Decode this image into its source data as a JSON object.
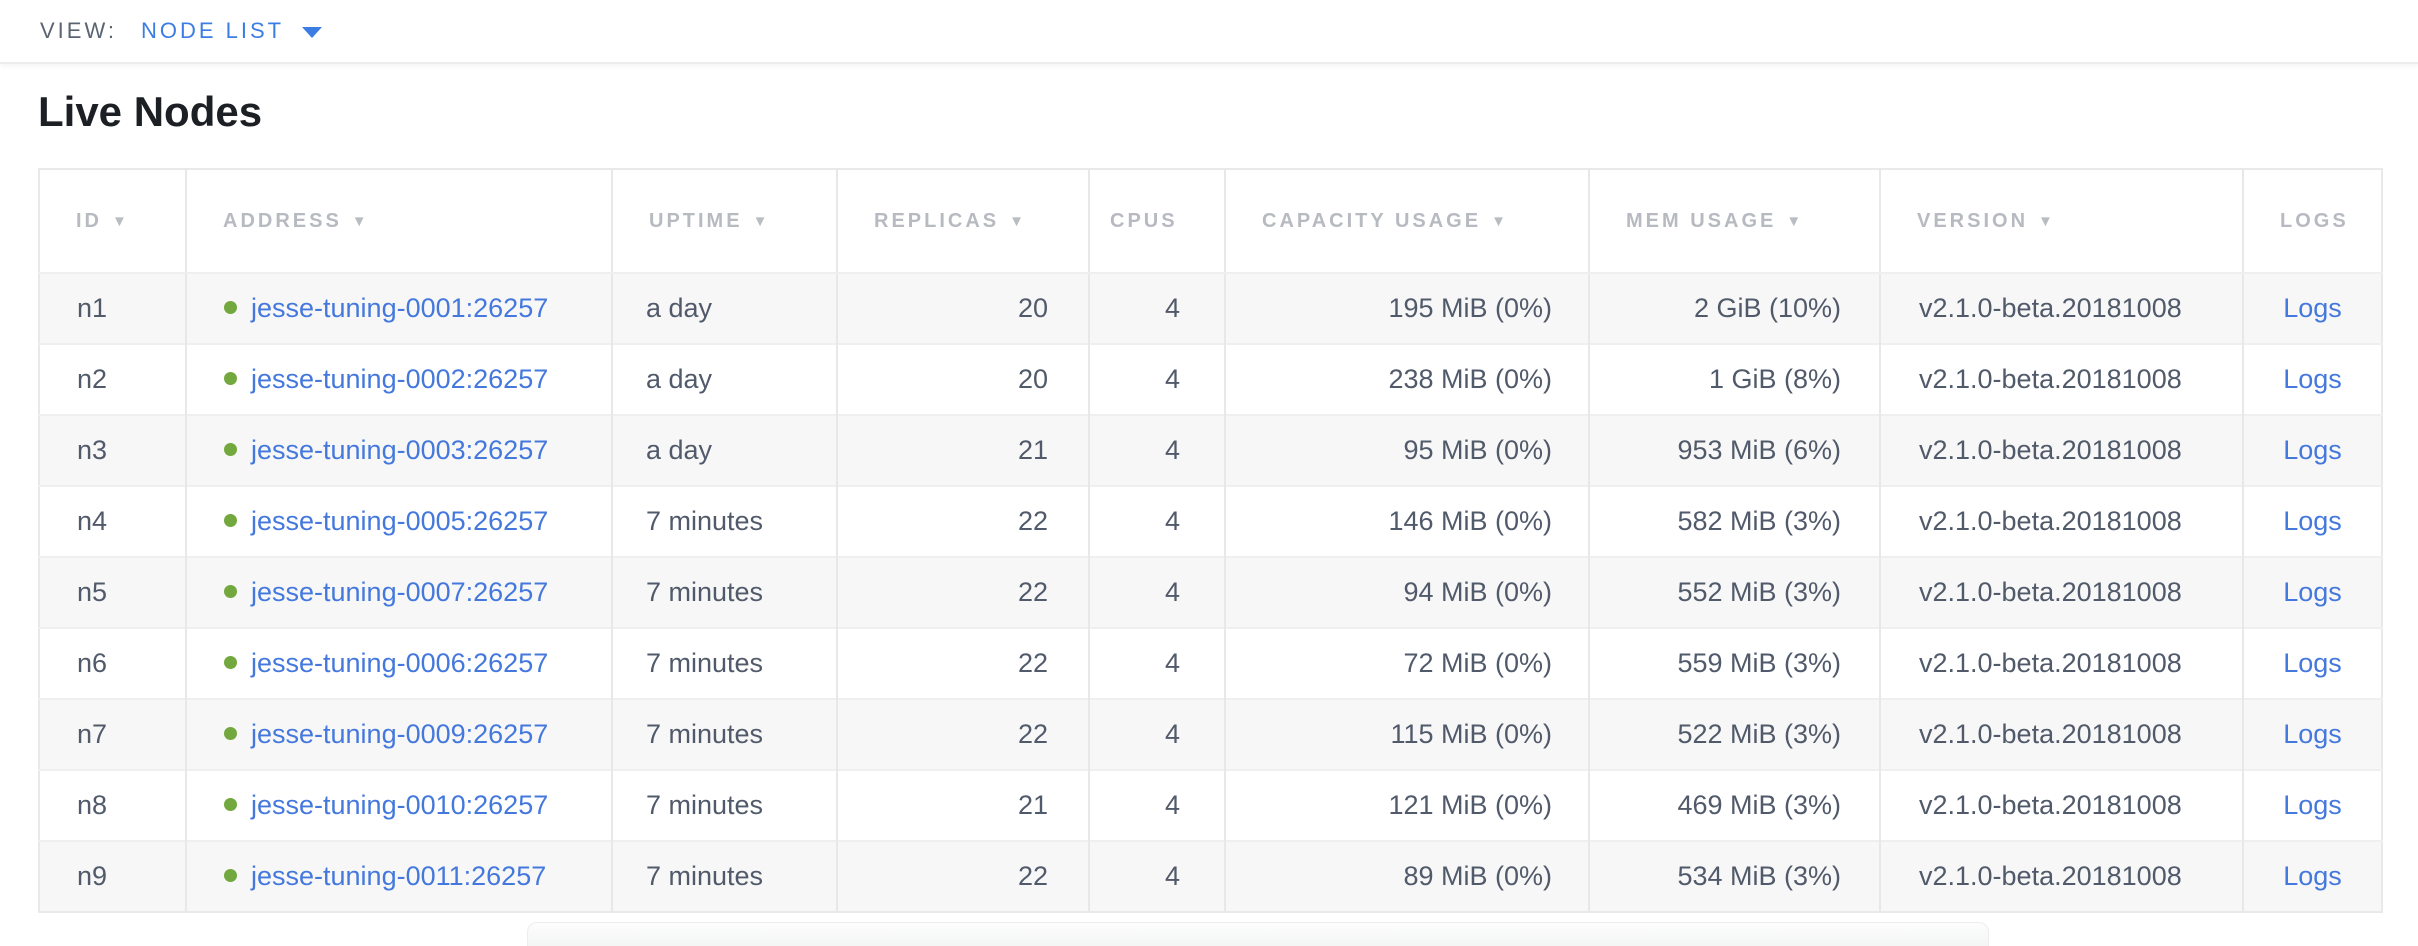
{
  "view_bar": {
    "label": "VIEW:",
    "selected_view": "NODE LIST"
  },
  "page": {
    "title": "Live Nodes"
  },
  "icons": {
    "sort_arrow": "▼",
    "dropdown_arrow": "chevron-down",
    "status_dot": "live-green-dot"
  },
  "colors": {
    "accent_blue": "#4478dd",
    "view_selector_blue": "#3b7de2",
    "live_dot_green": "#72a83d",
    "cell_text": "#515a6a",
    "header_text": "#b7bac0",
    "stripe_row": "#f7f7f7"
  },
  "table": {
    "columns": [
      {
        "key": "id",
        "label": "ID",
        "sortable": true
      },
      {
        "key": "address",
        "label": "ADDRESS",
        "sortable": true
      },
      {
        "key": "uptime",
        "label": "UPTIME",
        "sortable": true
      },
      {
        "key": "replicas",
        "label": "REPLICAS",
        "sortable": true
      },
      {
        "key": "cpus",
        "label": "CPUS",
        "sortable": false
      },
      {
        "key": "capacity",
        "label": "CAPACITY USAGE",
        "sortable": true
      },
      {
        "key": "mem",
        "label": "MEM USAGE",
        "sortable": true
      },
      {
        "key": "version",
        "label": "VERSION",
        "sortable": true
      },
      {
        "key": "logs",
        "label": "LOGS",
        "sortable": false
      }
    ],
    "rows": [
      {
        "id": "n1",
        "address": "jesse-tuning-0001:26257",
        "uptime": "a day",
        "replicas": "20",
        "cpus": "4",
        "capacity": "195 MiB (0%)",
        "mem": "2 GiB (10%)",
        "version": "v2.1.0-beta.20181008",
        "logs": "Logs"
      },
      {
        "id": "n2",
        "address": "jesse-tuning-0002:26257",
        "uptime": "a day",
        "replicas": "20",
        "cpus": "4",
        "capacity": "238 MiB (0%)",
        "mem": "1 GiB (8%)",
        "version": "v2.1.0-beta.20181008",
        "logs": "Logs"
      },
      {
        "id": "n3",
        "address": "jesse-tuning-0003:26257",
        "uptime": "a day",
        "replicas": "21",
        "cpus": "4",
        "capacity": "95 MiB (0%)",
        "mem": "953 MiB (6%)",
        "version": "v2.1.0-beta.20181008",
        "logs": "Logs"
      },
      {
        "id": "n4",
        "address": "jesse-tuning-0005:26257",
        "uptime": "7 minutes",
        "replicas": "22",
        "cpus": "4",
        "capacity": "146 MiB (0%)",
        "mem": "582 MiB (3%)",
        "version": "v2.1.0-beta.20181008",
        "logs": "Logs"
      },
      {
        "id": "n5",
        "address": "jesse-tuning-0007:26257",
        "uptime": "7 minutes",
        "replicas": "22",
        "cpus": "4",
        "capacity": "94 MiB (0%)",
        "mem": "552 MiB (3%)",
        "version": "v2.1.0-beta.20181008",
        "logs": "Logs"
      },
      {
        "id": "n6",
        "address": "jesse-tuning-0006:26257",
        "uptime": "7 minutes",
        "replicas": "22",
        "cpus": "4",
        "capacity": "72 MiB (0%)",
        "mem": "559 MiB (3%)",
        "version": "v2.1.0-beta.20181008",
        "logs": "Logs"
      },
      {
        "id": "n7",
        "address": "jesse-tuning-0009:26257",
        "uptime": "7 minutes",
        "replicas": "22",
        "cpus": "4",
        "capacity": "115 MiB (0%)",
        "mem": "522 MiB (3%)",
        "version": "v2.1.0-beta.20181008",
        "logs": "Logs"
      },
      {
        "id": "n8",
        "address": "jesse-tuning-0010:26257",
        "uptime": "7 minutes",
        "replicas": "21",
        "cpus": "4",
        "capacity": "121 MiB (0%)",
        "mem": "469 MiB (3%)",
        "version": "v2.1.0-beta.20181008",
        "logs": "Logs"
      },
      {
        "id": "n9",
        "address": "jesse-tuning-0011:26257",
        "uptime": "7 minutes",
        "replicas": "22",
        "cpus": "4",
        "capacity": "89 MiB (0%)",
        "mem": "534 MiB (3%)",
        "version": "v2.1.0-beta.20181008",
        "logs": "Logs"
      }
    ]
  }
}
